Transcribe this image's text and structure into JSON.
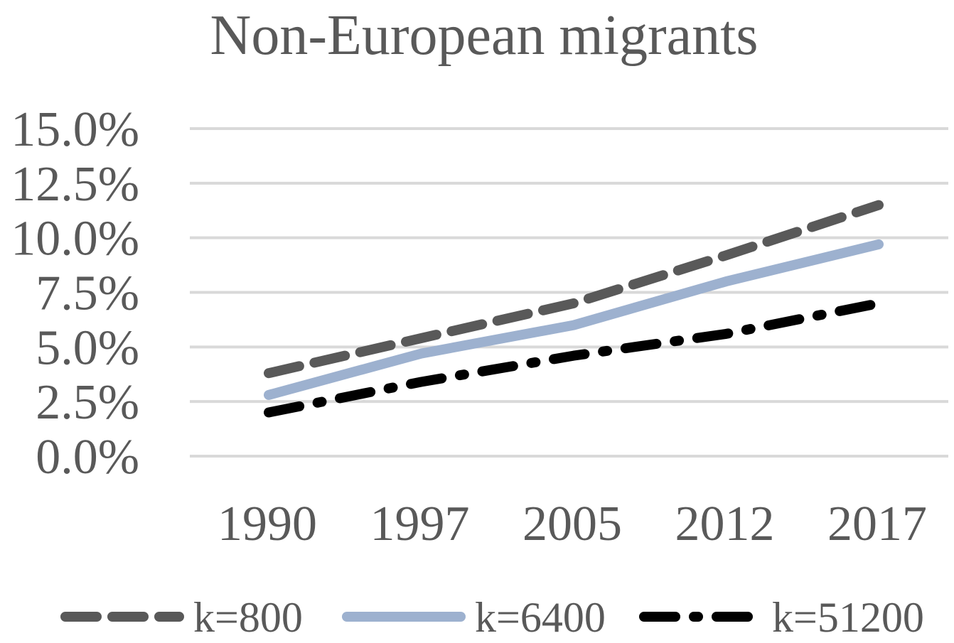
{
  "chart_data": {
    "type": "line",
    "title": "Non-European migrants",
    "xlabel": "",
    "ylabel": "",
    "categories": [
      "1990",
      "1997",
      "2005",
      "2012",
      "2017"
    ],
    "y_ticks": [
      "0.0%",
      "2.5%",
      "5.0%",
      "7.5%",
      "10.0%",
      "12.5%",
      "15.0%"
    ],
    "ylim": [
      0,
      15
    ],
    "grid": true,
    "legend_position": "bottom",
    "series": [
      {
        "name": "k=800",
        "values": [
          3.8,
          5.4,
          7.0,
          9.2,
          11.5
        ],
        "color": "#595959",
        "style": "dashed"
      },
      {
        "name": "k=6400",
        "values": [
          2.8,
          4.7,
          6.0,
          8.0,
          9.7
        ],
        "color": "#9db1cf",
        "style": "solid"
      },
      {
        "name": "k=51200",
        "values": [
          2.0,
          3.4,
          4.6,
          5.6,
          7.0
        ],
        "color": "#000000",
        "style": "dash-dot"
      }
    ],
    "colors": {
      "title": "#595959",
      "tick_label": "#595959",
      "gridline": "#d9d9d9",
      "legend_label": "#595959"
    }
  }
}
